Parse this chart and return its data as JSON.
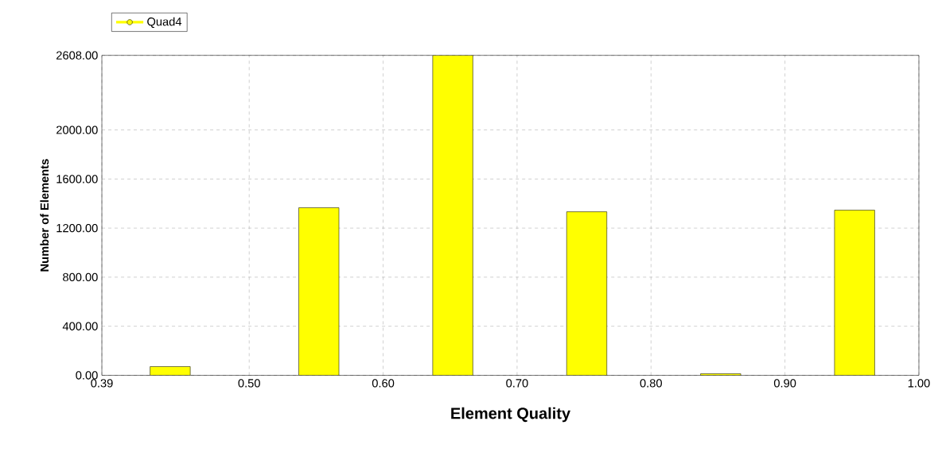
{
  "chart_data": {
    "type": "bar",
    "xlabel": "Element Quality",
    "ylabel": "Number of Elements",
    "x": [
      0.441,
      0.552,
      0.652,
      0.752,
      0.852,
      0.952
    ],
    "series": [
      {
        "name": "Quad4",
        "color": "#ffff00",
        "values": [
          71,
          1366,
          2608,
          1333,
          13,
          1346
        ]
      }
    ],
    "xlim": [
      0.39,
      1.0
    ],
    "xticks": [
      {
        "value": 0.39,
        "label": "0.39"
      },
      {
        "value": 0.5,
        "label": "0.50"
      },
      {
        "value": 0.6,
        "label": "0.60"
      },
      {
        "value": 0.7,
        "label": "0.70"
      },
      {
        "value": 0.8,
        "label": "0.80"
      },
      {
        "value": 0.9,
        "label": "0.90"
      },
      {
        "value": 1.0,
        "label": "1.00"
      }
    ],
    "ylim": [
      0,
      2608
    ],
    "yticks": [
      {
        "value": 0,
        "label": "0.00"
      },
      {
        "value": 400,
        "label": "400.00"
      },
      {
        "value": 800,
        "label": "800.00"
      },
      {
        "value": 1200,
        "label": "1200.00"
      },
      {
        "value": 1600,
        "label": "1600.00"
      },
      {
        "value": 2000,
        "label": "2000.00"
      },
      {
        "value": 2608,
        "label": "2608.00"
      }
    ],
    "grid": true,
    "legend": "top left"
  }
}
